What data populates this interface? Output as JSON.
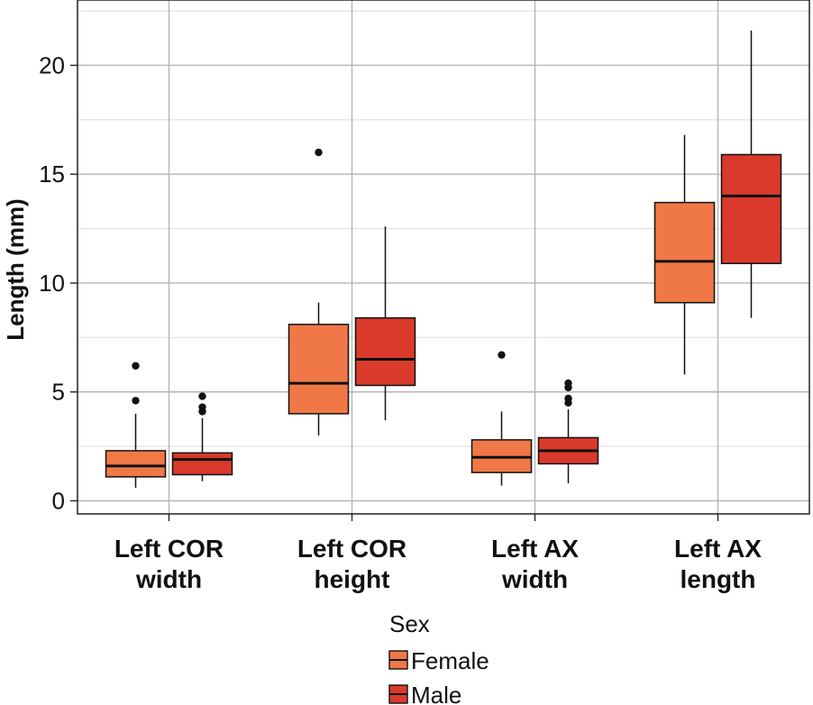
{
  "chart_data": {
    "type": "boxplot",
    "title": "",
    "xlabel": "",
    "ylabel": "Length (mm)",
    "ylim": [
      -0.6,
      23
    ],
    "y_ticks": [
      0,
      5,
      10,
      15,
      20
    ],
    "categories": [
      "Left COR width",
      "Left COR height",
      "Left AX width",
      "Left AX length"
    ],
    "category_lines": [
      [
        "Left COR",
        "width"
      ],
      [
        "Left COR",
        "height"
      ],
      [
        "Left AX",
        "width"
      ],
      [
        "Left AX",
        "length"
      ]
    ],
    "legend": {
      "title": "Sex",
      "position": "bottom"
    },
    "grid": true,
    "series": [
      {
        "name": "Female",
        "color": "#F07847",
        "boxes": [
          {
            "whisker_low": 0.6,
            "q1": 1.1,
            "median": 1.6,
            "q3": 2.3,
            "whisker_high": 4.0,
            "outliers": [
              4.6,
              6.2
            ]
          },
          {
            "whisker_low": 3.0,
            "q1": 4.0,
            "median": 5.4,
            "q3": 8.1,
            "whisker_high": 9.1,
            "outliers": [
              16.0
            ]
          },
          {
            "whisker_low": 0.7,
            "q1": 1.3,
            "median": 2.0,
            "q3": 2.8,
            "whisker_high": 4.1,
            "outliers": [
              6.7
            ]
          },
          {
            "whisker_low": 5.8,
            "q1": 9.1,
            "median": 11.0,
            "q3": 13.7,
            "whisker_high": 16.8,
            "outliers": []
          }
        ]
      },
      {
        "name": "Male",
        "color": "#D93A2B",
        "boxes": [
          {
            "whisker_low": 0.9,
            "q1": 1.2,
            "median": 1.9,
            "q3": 2.2,
            "whisker_high": 3.8,
            "outliers": [
              4.1,
              4.3,
              4.8
            ]
          },
          {
            "whisker_low": 3.7,
            "q1": 5.3,
            "median": 6.5,
            "q3": 8.4,
            "whisker_high": 12.6,
            "outliers": []
          },
          {
            "whisker_low": 0.8,
            "q1": 1.7,
            "median": 2.3,
            "q3": 2.9,
            "whisker_high": 4.2,
            "outliers": [
              4.5,
              4.7,
              5.2,
              5.4
            ]
          },
          {
            "whisker_low": 8.4,
            "q1": 10.9,
            "median": 14.0,
            "q3": 15.9,
            "whisker_high": 21.6,
            "outliers": []
          }
        ]
      }
    ]
  }
}
